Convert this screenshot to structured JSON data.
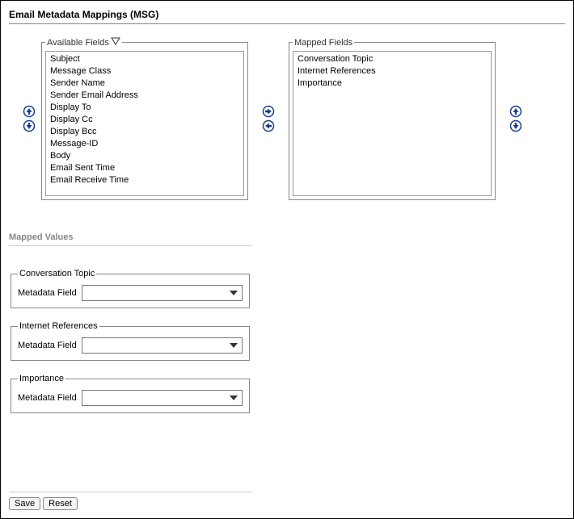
{
  "title": "Email Metadata Mappings (MSG)",
  "available": {
    "legend": "Available Fields",
    "items": [
      "Subject",
      "Message Class",
      "Sender Name",
      "Sender Email Address",
      "Display To",
      "Display Cc",
      "Display Bcc",
      "Message-ID",
      "Body",
      "Email Sent Time",
      "Email Receive Time"
    ]
  },
  "mapped": {
    "legend": "Mapped Fields",
    "items": [
      "Conversation Topic",
      "Internet References",
      "Importance"
    ]
  },
  "mapped_values": {
    "section_label": "Mapped Values",
    "field_label": "Metadata Field",
    "groups": [
      "Conversation Topic",
      "Internet References",
      "Importance"
    ]
  },
  "buttons": {
    "save": "Save",
    "reset": "Reset"
  },
  "colors": {
    "title_rule": "#6a8bc1",
    "arrow_fill": "#1a3e8c",
    "arrow_ring": "#1a3e8c"
  }
}
